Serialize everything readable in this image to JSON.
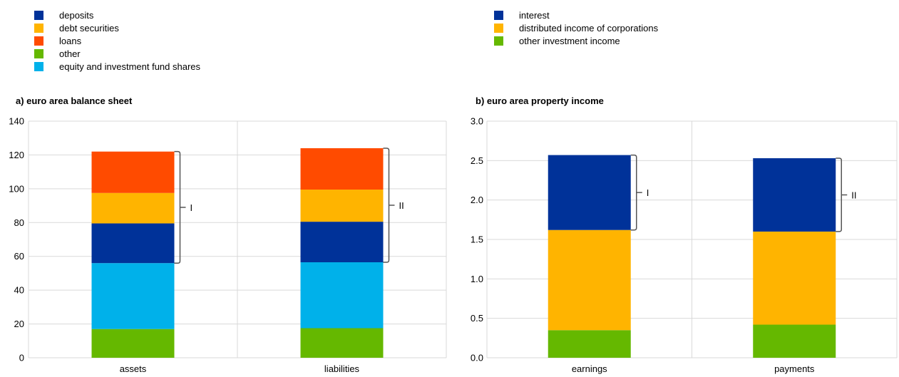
{
  "legends": [
    {
      "items": [
        {
          "label": "deposits",
          "color": "#003299"
        },
        {
          "label": "debt securities",
          "color": "#FFB400"
        },
        {
          "label": "loans",
          "color": "#FF4B00"
        },
        {
          "label": "other",
          "color": "#65B800"
        },
        {
          "label": "equity and investment fund shares",
          "color": "#00B1EA"
        }
      ]
    },
    {
      "items": [
        {
          "label": "interest",
          "color": "#003299"
        },
        {
          "label": "distributed income of corporations",
          "color": "#FFB400"
        },
        {
          "label": "other investment income",
          "color": "#65B800"
        }
      ]
    }
  ],
  "panels": [
    {
      "title": "a) euro area balance sheet"
    },
    {
      "title": "b) euro area property income"
    }
  ],
  "chart_data": [
    {
      "type": "bar",
      "stacked": true,
      "title": "a) euro area balance sheet",
      "categories": [
        "assets",
        "liabilities"
      ],
      "ylim": [
        0,
        140
      ],
      "yticks": [
        0,
        20,
        40,
        60,
        80,
        100,
        120,
        140
      ],
      "ytick_labels": [
        "0",
        "20",
        "40",
        "60",
        "80",
        "100",
        "120",
        "140"
      ],
      "grid": true,
      "series": [
        {
          "name": "other",
          "color": "#65B800",
          "values": [
            17,
            17.5
          ]
        },
        {
          "name": "equity and investment fund shares",
          "color": "#00B1EA",
          "values": [
            39,
            39
          ]
        },
        {
          "name": "deposits",
          "color": "#003299",
          "values": [
            23.5,
            24
          ]
        },
        {
          "name": "debt securities",
          "color": "#FFB400",
          "values": [
            18,
            19
          ]
        },
        {
          "name": "loans",
          "color": "#FF4B00",
          "values": [
            24.5,
            24.5
          ]
        }
      ],
      "annotations": [
        {
          "label": "I",
          "category": "assets",
          "from": 56,
          "to": 122
        },
        {
          "label": "II",
          "category": "liabilities",
          "from": 56.5,
          "to": 124
        }
      ]
    },
    {
      "type": "bar",
      "stacked": true,
      "title": "b) euro area property income",
      "categories": [
        "earnings",
        "payments"
      ],
      "ylim": [
        0,
        3
      ],
      "yticks": [
        0,
        0.5,
        1,
        1.5,
        2,
        2.5,
        3
      ],
      "ytick_labels": [
        "0.0",
        "0.5",
        "1.0",
        "1.5",
        "2.0",
        "2.5",
        "3.0"
      ],
      "grid": true,
      "series": [
        {
          "name": "other investment income",
          "color": "#65B800",
          "values": [
            0.35,
            0.42
          ]
        },
        {
          "name": "distributed income of corporations",
          "color": "#FFB400",
          "values": [
            1.27,
            1.18
          ]
        },
        {
          "name": "interest",
          "color": "#003299",
          "values": [
            0.95,
            0.93
          ]
        }
      ],
      "annotations": [
        {
          "label": "I",
          "category": "earnings",
          "from": 1.62,
          "to": 2.57
        },
        {
          "label": "II",
          "category": "payments",
          "from": 1.6,
          "to": 2.53
        }
      ]
    }
  ]
}
